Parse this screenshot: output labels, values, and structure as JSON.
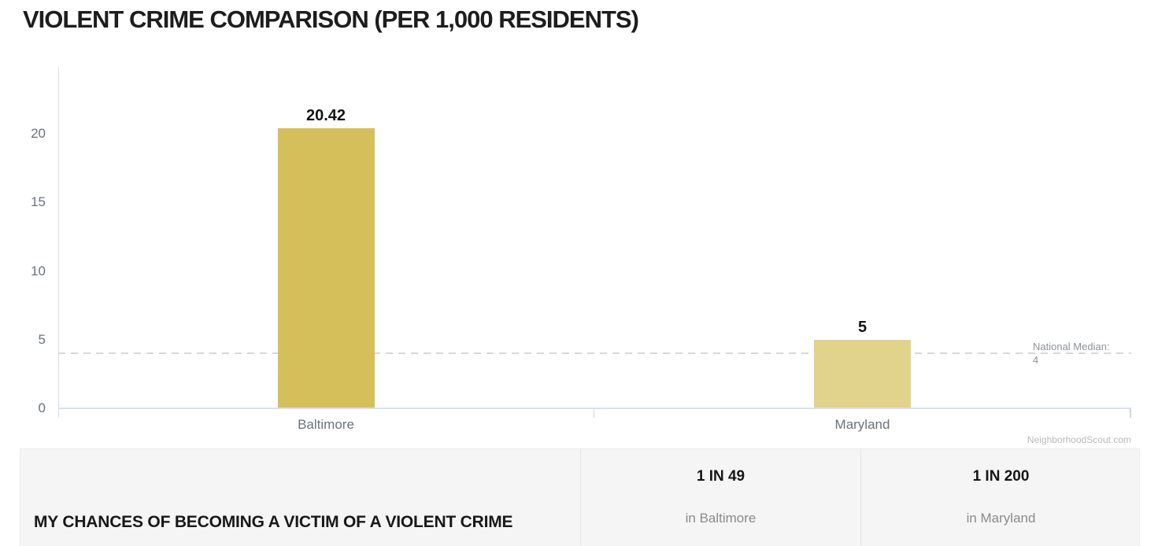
{
  "page": {
    "title": "VIOLENT CRIME COMPARISON (PER 1,000 RESIDENTS)"
  },
  "chart_data": {
    "type": "bar",
    "title": "VIOLENT CRIME COMPARISON (PER 1,000 RESIDENTS)",
    "categories": [
      "Baltimore",
      "Maryland"
    ],
    "values": [
      20.42,
      5
    ],
    "value_labels": [
      "20.42",
      "5"
    ],
    "bar_colors": [
      "#d5bf5b",
      "#e2d38c"
    ],
    "ylabel": "",
    "xlabel": "",
    "yticks": [
      0,
      5,
      10,
      15,
      20
    ],
    "ylim": [
      0,
      24.5
    ],
    "grid": false,
    "legend": "none",
    "reference_line": {
      "label": "National Median:",
      "value": 4,
      "style": "dashed"
    }
  },
  "watermark": "NeighborhoodScout.com",
  "chances": {
    "row_label": "MY CHANCES OF BECOMING A VICTIM OF A VIOLENT CRIME",
    "cells": [
      {
        "chance": "1 IN 49",
        "location": "in Baltimore"
      },
      {
        "chance": "1 IN 200",
        "location": "in Maryland"
      }
    ]
  }
}
